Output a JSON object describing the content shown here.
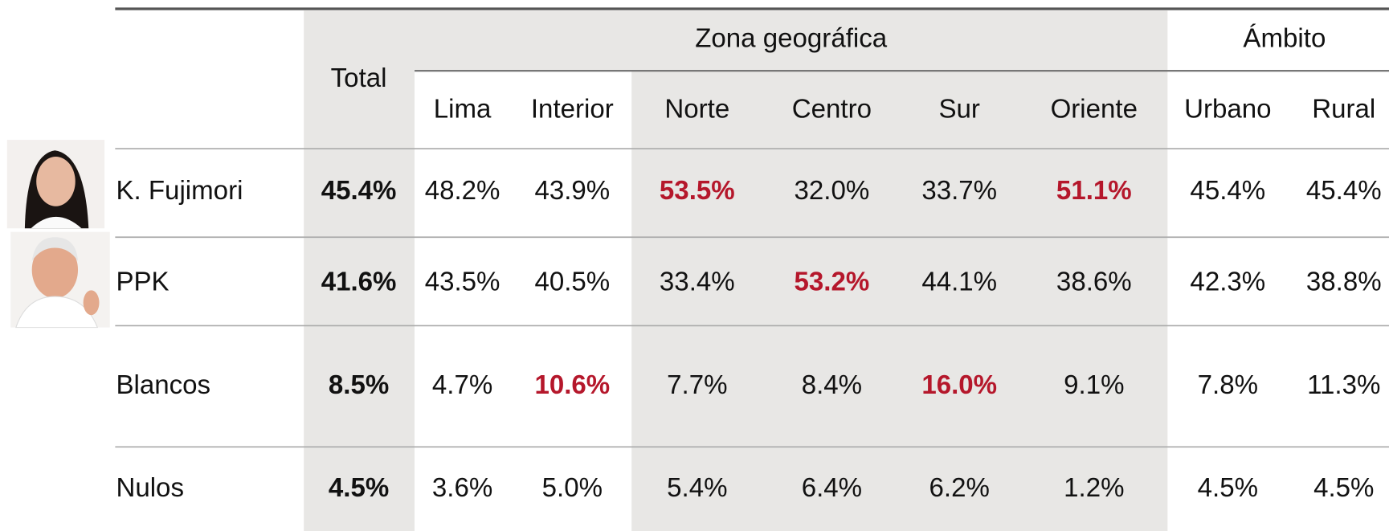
{
  "table": {
    "headers": {
      "total": "Total",
      "zona": "Zona geográfica",
      "ambito": "Ámbito",
      "columns": [
        "Lima",
        "Interior",
        "Norte",
        "Centro",
        "Sur",
        "Oriente",
        "Urbano",
        "Rural"
      ]
    },
    "highlight_color": "#b5172b",
    "rows": [
      {
        "label": "K. Fujimori",
        "total": "45.4%",
        "values": [
          "48.2%",
          "43.9%",
          "53.5%",
          "32.0%",
          "33.7%",
          "51.1%",
          "45.4%",
          "45.4%"
        ],
        "highlight": [
          2,
          5
        ]
      },
      {
        "label": "PPK",
        "total": "41.6%",
        "values": [
          "43.5%",
          "40.5%",
          "33.4%",
          "53.2%",
          "44.1%",
          "38.6%",
          "42.3%",
          "38.8%"
        ],
        "highlight": [
          3
        ]
      },
      {
        "label": "Blancos",
        "total": "8.5%",
        "values": [
          "4.7%",
          "10.6%",
          "7.7%",
          "8.4%",
          "16.0%",
          "9.1%",
          "7.8%",
          "11.3%"
        ],
        "highlight": [
          1,
          4
        ]
      },
      {
        "label": "Nulos",
        "total": "4.5%",
        "values": [
          "3.6%",
          "5.0%",
          "5.4%",
          "6.4%",
          "6.2%",
          "1.2%",
          "4.5%",
          "4.5%"
        ],
        "highlight": []
      }
    ]
  }
}
